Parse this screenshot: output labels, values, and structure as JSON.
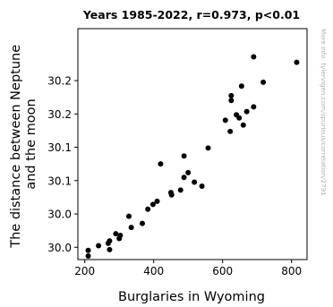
{
  "chart_data": {
    "type": "scatter",
    "title": "Years 1985-2022, r=0.973, p<0.01",
    "xlabel": "Burglaries in Wyoming",
    "ylabel_lines": [
      "The distance between Neptune",
      "and the moon"
    ],
    "watermark": "More info: tylervigen.com/spurious/correlation/2791",
    "xlim": [
      180,
      845
    ],
    "ylim": [
      29.9945,
      30.2855
    ],
    "x_ticks": [
      {
        "value": 200,
        "label": "200"
      },
      {
        "value": 400,
        "label": "400"
      },
      {
        "value": 600,
        "label": "600"
      },
      {
        "value": 800,
        "label": "800"
      }
    ],
    "y_ticks": [
      {
        "value": 30.01,
        "label": "30.0"
      },
      {
        "value": 30.052,
        "label": "30.0"
      },
      {
        "value": 30.094,
        "label": "30.1"
      },
      {
        "value": 30.136,
        "label": "30.1"
      },
      {
        "value": 30.178,
        "label": "30.2"
      },
      {
        "value": 30.22,
        "label": "30.2"
      }
    ],
    "marker_color": "#000000",
    "points": [
      {
        "x": 210,
        "y": 29.999
      },
      {
        "x": 210,
        "y": 30.006
      },
      {
        "x": 240,
        "y": 30.012
      },
      {
        "x": 268,
        "y": 30.015
      },
      {
        "x": 272,
        "y": 30.018
      },
      {
        "x": 272,
        "y": 30.007
      },
      {
        "x": 290,
        "y": 30.027
      },
      {
        "x": 300,
        "y": 30.021
      },
      {
        "x": 303,
        "y": 30.025
      },
      {
        "x": 328,
        "y": 30.049
      },
      {
        "x": 335,
        "y": 30.035
      },
      {
        "x": 367,
        "y": 30.04
      },
      {
        "x": 383,
        "y": 30.058
      },
      {
        "x": 398,
        "y": 30.064
      },
      {
        "x": 410,
        "y": 30.068
      },
      {
        "x": 420,
        "y": 30.115
      },
      {
        "x": 450,
        "y": 30.079
      },
      {
        "x": 452,
        "y": 30.076
      },
      {
        "x": 478,
        "y": 30.082
      },
      {
        "x": 488,
        "y": 30.098
      },
      {
        "x": 488,
        "y": 30.125
      },
      {
        "x": 500,
        "y": 30.104
      },
      {
        "x": 518,
        "y": 30.092
      },
      {
        "x": 540,
        "y": 30.087
      },
      {
        "x": 558,
        "y": 30.135
      },
      {
        "x": 608,
        "y": 30.17
      },
      {
        "x": 622,
        "y": 30.156
      },
      {
        "x": 625,
        "y": 30.195
      },
      {
        "x": 625,
        "y": 30.201
      },
      {
        "x": 640,
        "y": 30.177
      },
      {
        "x": 648,
        "y": 30.173
      },
      {
        "x": 655,
        "y": 30.213
      },
      {
        "x": 660,
        "y": 30.164
      },
      {
        "x": 670,
        "y": 30.181
      },
      {
        "x": 690,
        "y": 30.187
      },
      {
        "x": 690,
        "y": 30.25
      },
      {
        "x": 718,
        "y": 30.218
      },
      {
        "x": 815,
        "y": 30.243
      }
    ]
  }
}
